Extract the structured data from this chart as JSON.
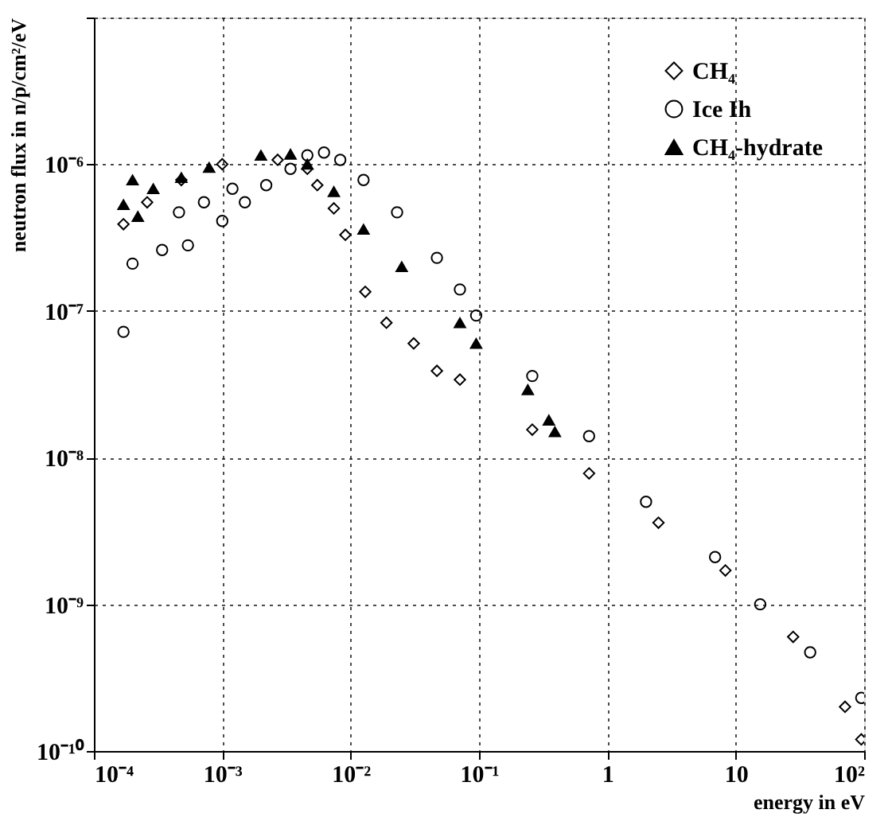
{
  "chart_data": {
    "type": "scatter",
    "xlabel": "energy in eV",
    "ylabel": "neutron flux in n/p/cm²/eV",
    "log": "xy",
    "grid": true,
    "legend": "top right",
    "xlim": [
      0.0001,
      100
    ],
    "ylim": [
      1e-10,
      1e-05
    ],
    "xticks": [
      {
        "value": 0.0001,
        "label": "10⁻⁴"
      },
      {
        "value": 0.001,
        "label": "10⁻³"
      },
      {
        "value": 0.01,
        "label": "10⁻²"
      },
      {
        "value": 0.1,
        "label": "10⁻¹"
      },
      1,
      10,
      {
        "value": 100,
        "label": "10²"
      }
    ],
    "yticks": [
      {
        "value": 1e-10,
        "label": "10⁻¹⁰"
      },
      {
        "value": 1e-09,
        "label": "10⁻⁹"
      },
      {
        "value": 1e-08,
        "label": "10⁻⁸"
      },
      {
        "value": 1e-07,
        "label": "10⁻⁷"
      },
      {
        "value": 1e-06,
        "label": "10⁻⁶"
      },
      {
        "value": 1e-05,
        "label": null
      }
    ],
    "series": [
      {
        "name": "CH₄",
        "color": "#000000",
        "marker": "diamond",
        "x": [
          0.00017,
          0.00026,
          0.00048,
          0.001,
          0.0027,
          0.0046,
          0.0055,
          0.0074,
          0.0091,
          0.013,
          0.019,
          0.031,
          0.047,
          0.071,
          0.26,
          0.72,
          2.5,
          8.3,
          28,
          71,
          95
        ],
        "values": [
          3.9e-07,
          5.5e-07,
          7.8e-07,
          1e-06,
          1.07e-06,
          9.3e-07,
          7.2e-07,
          5e-07,
          3.3e-07,
          1.35e-07,
          8.3e-08,
          6e-08,
          3.9e-08,
          3.4e-08,
          1.55e-08,
          7.8e-09,
          3.6e-09,
          1.7e-09,
          6e-10,
          2e-10,
          1.2e-10
        ]
      },
      {
        "name": "Ice Ih",
        "color": "#000000",
        "marker": "circle",
        "x": [
          0.00017,
          0.0002,
          0.00034,
          0.00054,
          0.00046,
          0.00072,
          0.001,
          0.0012,
          0.0015,
          0.0022,
          0.0034,
          0.0046,
          0.0062,
          0.0083,
          0.0126,
          0.023,
          0.047,
          0.071,
          0.095,
          0.26,
          0.72,
          2.0,
          6.9,
          15.5,
          38,
          95
        ],
        "values": [
          7.2e-08,
          2.1e-07,
          2.6e-07,
          2.8e-07,
          4.7e-07,
          5.5e-07,
          4.1e-07,
          6.8e-07,
          5.5e-07,
          7.2e-07,
          9.3e-07,
          1.15e-06,
          1.2e-06,
          1.07e-06,
          7.8e-07,
          4.7e-07,
          2.3e-07,
          1.4e-07,
          9.3e-08,
          3.6e-08,
          1.4e-08,
          5e-09,
          2.1e-09,
          1e-09,
          4.7e-10,
          2.3e-10
        ]
      },
      {
        "name": "CH₄-hydrate",
        "color": "#000000",
        "marker": "triangle",
        "x": [
          0.00017,
          0.0002,
          0.00022,
          0.00029,
          0.00048,
          0.00079,
          0.002,
          0.0034,
          0.0046,
          0.0074,
          0.0126,
          0.025,
          0.071,
          0.095,
          0.24,
          0.35,
          0.39
        ],
        "values": [
          5.3e-07,
          7.8e-07,
          4.4e-07,
          6.8e-07,
          8.1e-07,
          9.5e-07,
          1.15e-06,
          1.17e-06,
          1e-06,
          6.5e-07,
          3.6e-07,
          2e-07,
          8.3e-08,
          6e-08,
          2.9e-08,
          1.8e-08,
          1.5e-08
        ]
      }
    ]
  }
}
